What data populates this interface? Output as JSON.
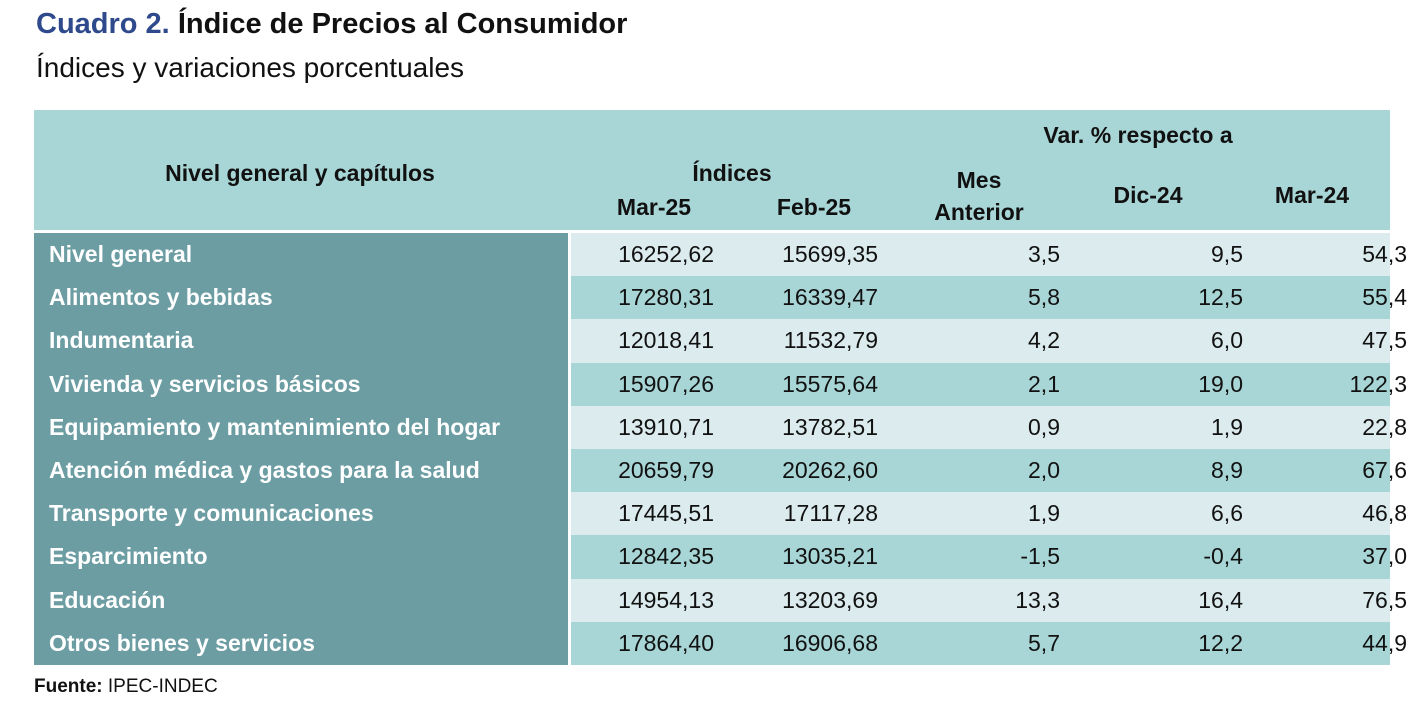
{
  "title_prefix": "Cuadro 2.",
  "title_main": "Índice de Precios al Consumidor",
  "subtitle": "Índices y variaciones porcentuales",
  "header": {
    "level": "Nivel general y capítulos",
    "indices": "Índices",
    "mar25": "Mar-25",
    "feb25": "Feb-25",
    "var_group": "Var. % respecto a",
    "mes_line1": "Mes",
    "mes_line2": "Anterior",
    "dic24": "Dic-24",
    "mar24": "Mar-24"
  },
  "rows": [
    {
      "label": "Nivel general",
      "mar25": "16252,62",
      "feb25": "15699,35",
      "mes": "3,5",
      "dic": "9,5",
      "mar24": "54,3"
    },
    {
      "label": "Alimentos y bebidas",
      "mar25": "17280,31",
      "feb25": "16339,47",
      "mes": "5,8",
      "dic": "12,5",
      "mar24": "55,4"
    },
    {
      "label": "Indumentaria",
      "mar25": "12018,41",
      "feb25": "11532,79",
      "mes": "4,2",
      "dic": "6,0",
      "mar24": "47,5"
    },
    {
      "label": "Vivienda y servicios básicos",
      "mar25": "15907,26",
      "feb25": "15575,64",
      "mes": "2,1",
      "dic": "19,0",
      "mar24": "122,3"
    },
    {
      "label": "Equipamiento y mantenimiento del hogar",
      "mar25": "13910,71",
      "feb25": "13782,51",
      "mes": "0,9",
      "dic": "1,9",
      "mar24": "22,8"
    },
    {
      "label": "Atención médica y gastos para la salud",
      "mar25": "20659,79",
      "feb25": "20262,60",
      "mes": "2,0",
      "dic": "8,9",
      "mar24": "67,6"
    },
    {
      "label": "Transporte y comunicaciones",
      "mar25": "17445,51",
      "feb25": "17117,28",
      "mes": "1,9",
      "dic": "6,6",
      "mar24": "46,8"
    },
    {
      "label": "Esparcimiento",
      "mar25": "12842,35",
      "feb25": "13035,21",
      "mes": "-1,5",
      "dic": "-0,4",
      "mar24": "37,0"
    },
    {
      "label": "Educación",
      "mar25": "14954,13",
      "feb25": "13203,69",
      "mes": "13,3",
      "dic": "16,4",
      "mar24": "76,5"
    },
    {
      "label": "Otros bienes y servicios",
      "mar25": "17864,40",
      "feb25": "16906,68",
      "mes": "5,7",
      "dic": "12,2",
      "mar24": "44,9"
    }
  ],
  "source_label": "Fuente:",
  "source_value": "IPEC-INDEC",
  "colors": {
    "title_prefix": "#2e4a8c",
    "header_bg": "#a8d5d6",
    "label_bg": "#6b9da3",
    "row_light": "#dcecee",
    "row_dark": "#a8d5d6"
  }
}
